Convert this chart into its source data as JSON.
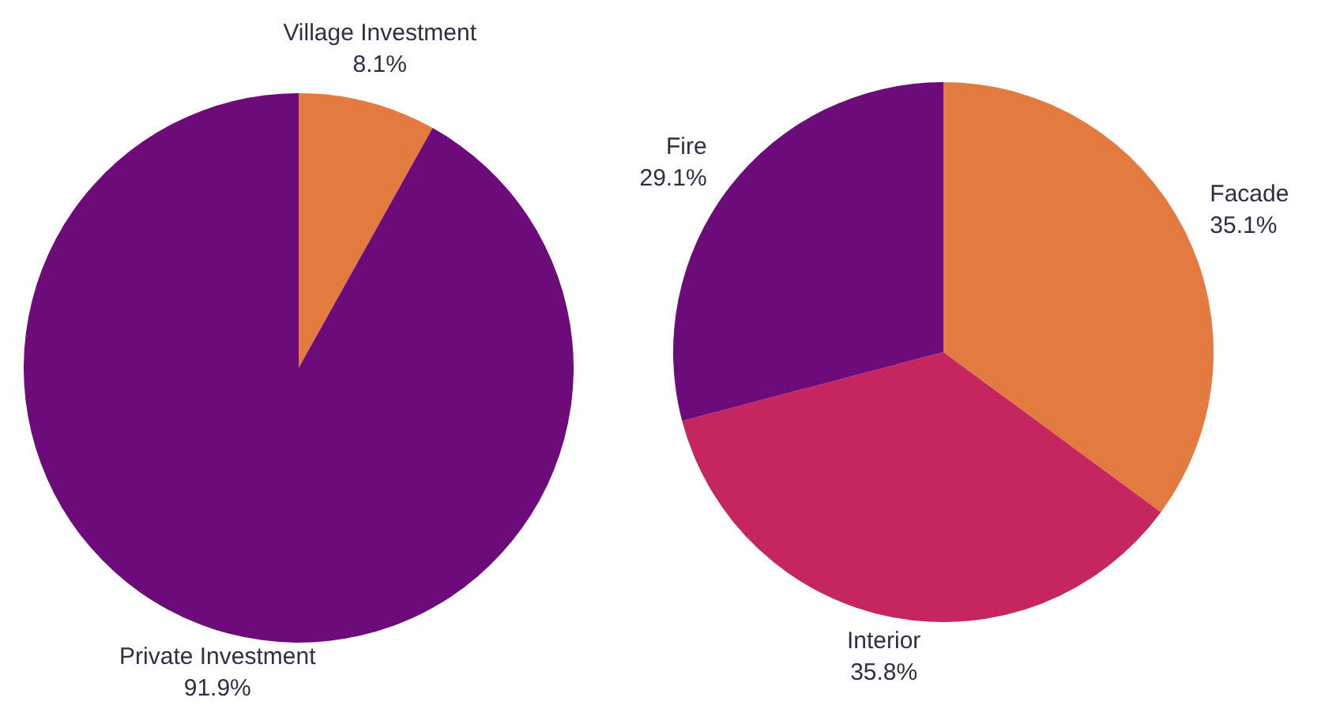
{
  "chart_data": [
    {
      "type": "pie",
      "categories": [
        "Village Investment",
        "Private Investment"
      ],
      "values": [
        8.1,
        91.9
      ],
      "colors": [
        "#e37b40",
        "#6e0b7a"
      ],
      "value_labels": [
        "8.1%",
        "91.9%"
      ]
    },
    {
      "type": "pie",
      "categories": [
        "Facade",
        "Interior",
        "Fire"
      ],
      "values": [
        35.1,
        35.8,
        29.1
      ],
      "colors": [
        "#e37b40",
        "#c62660",
        "#6e0b7a"
      ],
      "value_labels": [
        "35.1%",
        "35.8%",
        "29.1%"
      ]
    }
  ]
}
